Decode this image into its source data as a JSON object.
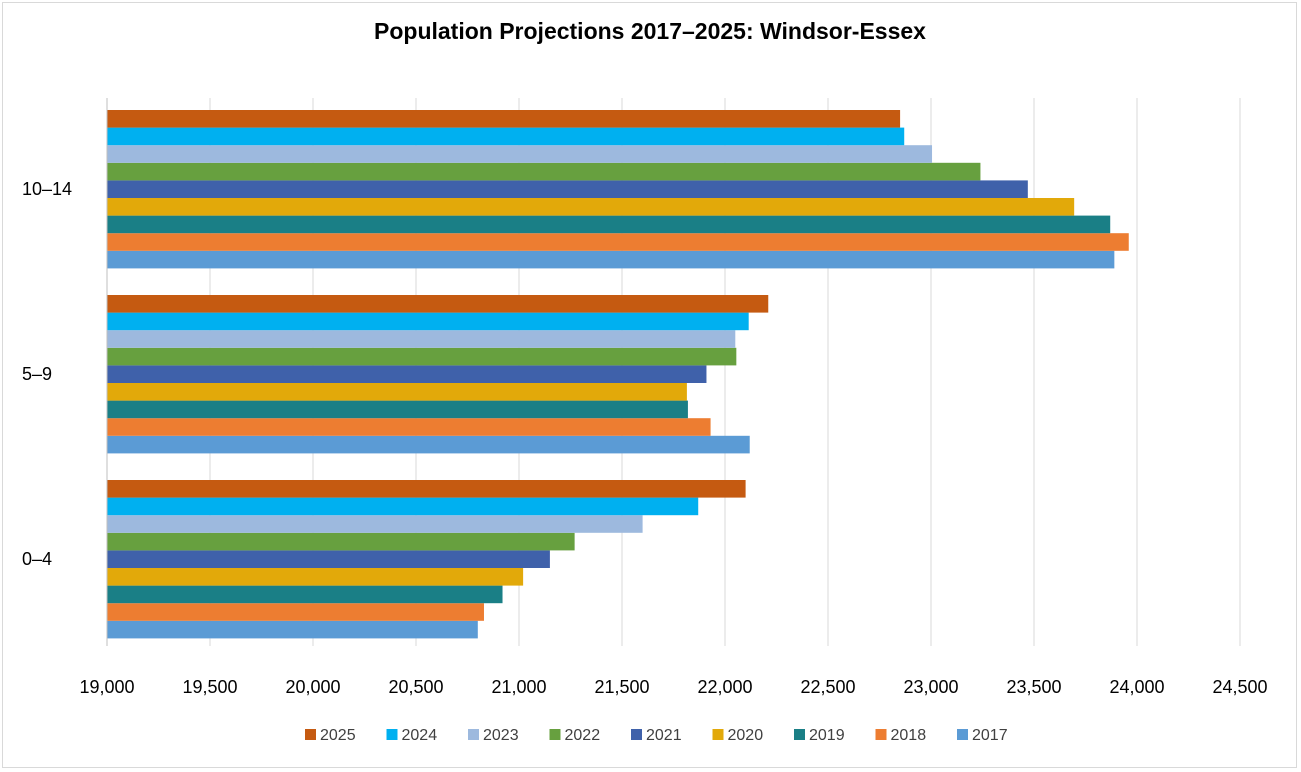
{
  "chart_data": {
    "type": "bar",
    "orientation": "horizontal",
    "title": "Population Projections 2017–2025: Windsor-Essex",
    "xlabel": "",
    "ylabel": "",
    "categories": [
      "0–4",
      "5–9",
      "10–14"
    ],
    "xlim": [
      19000,
      24500
    ],
    "x_ticks": [
      19000,
      19500,
      20000,
      20500,
      21000,
      21500,
      22000,
      22500,
      23000,
      23500,
      24000,
      24500
    ],
    "x_tick_labels": [
      "19,000",
      "19,500",
      "20,000",
      "20,500",
      "21,000",
      "21,500",
      "22,000",
      "22,500",
      "23,000",
      "23,500",
      "24,000",
      "24,500"
    ],
    "grid": "vertical",
    "legend_position": "bottom",
    "series": [
      {
        "name": "2017",
        "color": "#5B9BD5",
        "values": [
          20800,
          22120,
          23890
        ]
      },
      {
        "name": "2018",
        "color": "#ED7D31",
        "values": [
          20830,
          21930,
          23960
        ]
      },
      {
        "name": "2019",
        "color": "#1A7F86",
        "values": [
          20920,
          21820,
          23870
        ]
      },
      {
        "name": "2020",
        "color": "#E2A90A",
        "values": [
          21020,
          21815,
          23695
        ]
      },
      {
        "name": "2021",
        "color": "#3F61AA",
        "values": [
          21150,
          21910,
          23470
        ]
      },
      {
        "name": "2022",
        "color": "#67A03F",
        "values": [
          21270,
          22055,
          23240
        ]
      },
      {
        "name": "2023",
        "color": "#9DB9DE",
        "values": [
          21600,
          22050,
          23005
        ]
      },
      {
        "name": "2024",
        "color": "#00B0F0",
        "values": [
          21870,
          22115,
          22870
        ]
      },
      {
        "name": "2025",
        "color": "#C55A11",
        "values": [
          22100,
          22210,
          22850
        ]
      }
    ],
    "legend_order": [
      "2025",
      "2024",
      "2023",
      "2022",
      "2021",
      "2020",
      "2019",
      "2018",
      "2017"
    ]
  },
  "colors": {
    "gridline": "#d9d9d9",
    "axis": "#bfbfbf",
    "border": "#d9d9d9"
  }
}
